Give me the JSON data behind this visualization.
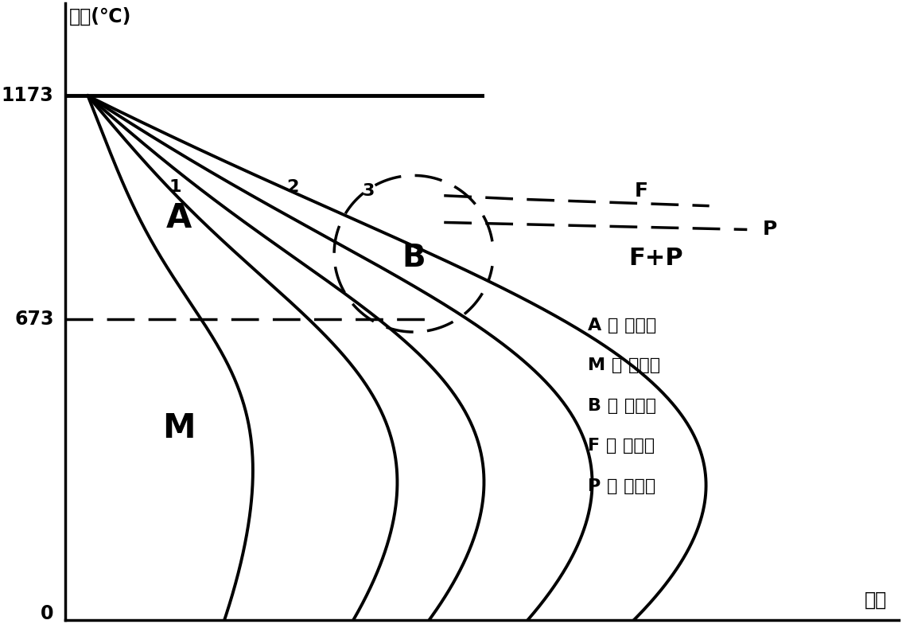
{
  "ylabel_top": "温度(℃)",
  "xlabel_bottom": "时间",
  "ytick_1173": "1173",
  "ytick_673": "673",
  "ytick_0": "0",
  "label_A": "A",
  "label_M": "M",
  "label_B": "B",
  "label_FP": "F+P",
  "label_F": "F",
  "label_P": "P",
  "label_1": "1",
  "label_2": "2",
  "label_3": "3",
  "legend_lines": [
    "A － 奥氏体",
    "M － 马氏体",
    "B － 贝氏体",
    "F － 铁素体",
    "P － 珠光体"
  ],
  "ms_y": 673,
  "ac_y": 1173,
  "ylim": [
    0,
    1380
  ],
  "xlim": [
    0,
    11
  ],
  "bg_color": "#ffffff",
  "line_color": "#000000",
  "lw": 2.8
}
